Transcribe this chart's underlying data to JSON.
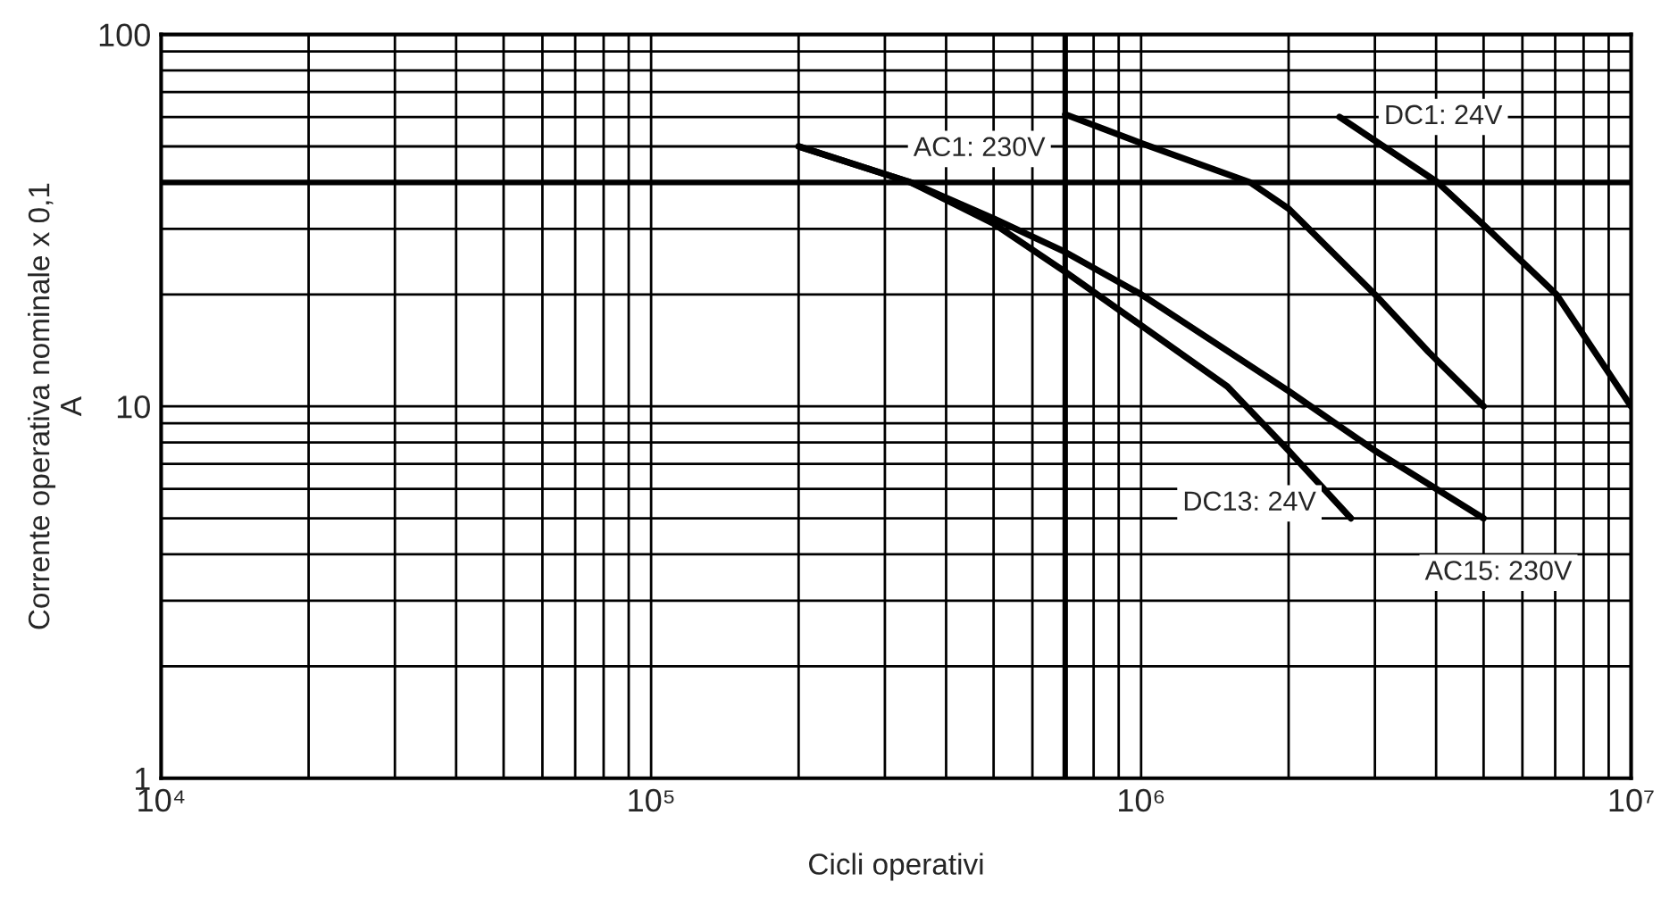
{
  "chart_data": {
    "type": "line",
    "xlabel": "Cicli operativi",
    "ylabel": "Corrente operativa nominale x 0,1\nA",
    "log": "xy",
    "grid": true,
    "legend": false,
    "marker": "none",
    "line_style": "solid",
    "xlim": [
      10000,
      10000000
    ],
    "ylim": [
      1,
      100
    ],
    "xticks": [
      {
        "value": 10000,
        "label": "10⁴"
      },
      {
        "value": 100000,
        "label": "10⁵"
      },
      {
        "value": 1000000,
        "label": "10⁶"
      },
      {
        "value": 10000000,
        "label": "10⁷"
      }
    ],
    "yticks": [
      1,
      10,
      100
    ],
    "ref_lines": [
      {
        "axis": "y",
        "value": 40,
        "label": null,
        "color": "#000000"
      },
      {
        "axis": "x",
        "value": 700000,
        "label": null,
        "color": "#000000"
      }
    ],
    "series": [
      {
        "name": "AC1: 230V",
        "color": "#000000",
        "x": [
          700000,
          1000000,
          1670000,
          2000000,
          3000000,
          3860000,
          5000000
        ],
        "values": [
          61,
          51,
          40,
          34,
          20,
          14,
          10
        ]
      },
      {
        "name": "DC1: 24V",
        "color": "#000000",
        "x": [
          2540000,
          4030000,
          5100000,
          7040000,
          10000000
        ],
        "values": [
          60,
          40,
          30,
          20,
          10
        ]
      },
      {
        "name": "DC13: 24V",
        "color": "#000000",
        "x": [
          200000,
          339000,
          500000,
          700000,
          1000000,
          1500000,
          2000000,
          2680000
        ],
        "values": [
          50,
          40,
          31,
          23,
          16.5,
          11.3,
          7.6,
          5
        ]
      },
      {
        "name": "AC15: 230V",
        "color": "#000000",
        "x": [
          200000,
          339000,
          500000,
          700000,
          1000000,
          2000000,
          3000000,
          5000000
        ],
        "values": [
          50,
          40,
          32,
          26,
          20,
          11,
          7.6,
          5
        ]
      }
    ]
  }
}
